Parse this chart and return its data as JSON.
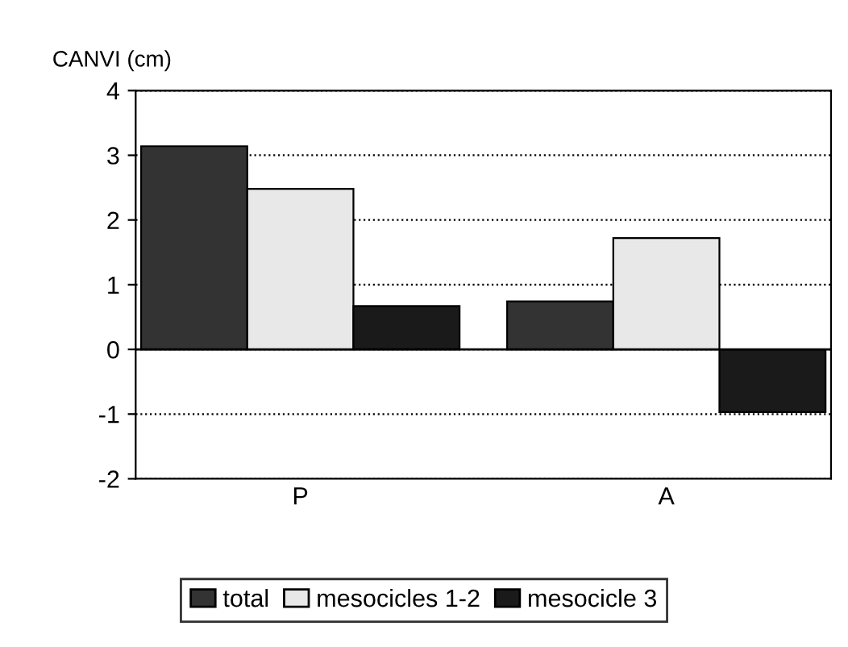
{
  "chart_data": {
    "type": "bar",
    "ylabel": "CANVI (cm)",
    "categories": [
      "P",
      "A"
    ],
    "series": [
      {
        "name": "total",
        "color": "#333333",
        "values": [
          3.14,
          0.74
        ]
      },
      {
        "name": "mesocicles 1-2",
        "color": "#e8e8e8",
        "values": [
          2.48,
          1.72
        ]
      },
      {
        "name": "mesocicle 3",
        "color": "#1a1a1a",
        "values": [
          0.67,
          -0.97
        ]
      }
    ],
    "ylim": [
      -2,
      4
    ],
    "yticks": [
      -2,
      -1,
      0,
      1,
      2,
      3,
      4
    ],
    "grid": "y",
    "line_style": "dotted",
    "legend": "bottom"
  }
}
